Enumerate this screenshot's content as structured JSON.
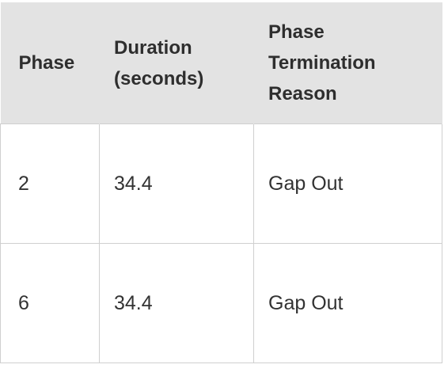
{
  "table": {
    "headers": [
      "Phase",
      "Duration (seconds)",
      "Phase Termination Reason"
    ],
    "header_lines": {
      "phase": [
        "Phase"
      ],
      "duration": [
        "Duration",
        "(seconds)"
      ],
      "reason": [
        "Phase",
        "Termination",
        "Reason"
      ]
    },
    "rows": [
      {
        "phase": "2",
        "duration": "34.4",
        "reason": "Gap Out"
      },
      {
        "phase": "6",
        "duration": "34.4",
        "reason": "Gap Out"
      }
    ]
  },
  "colors": {
    "header_bg": "#e3e3e3",
    "border": "#cfcfcf",
    "text": "#2b2b2b"
  }
}
